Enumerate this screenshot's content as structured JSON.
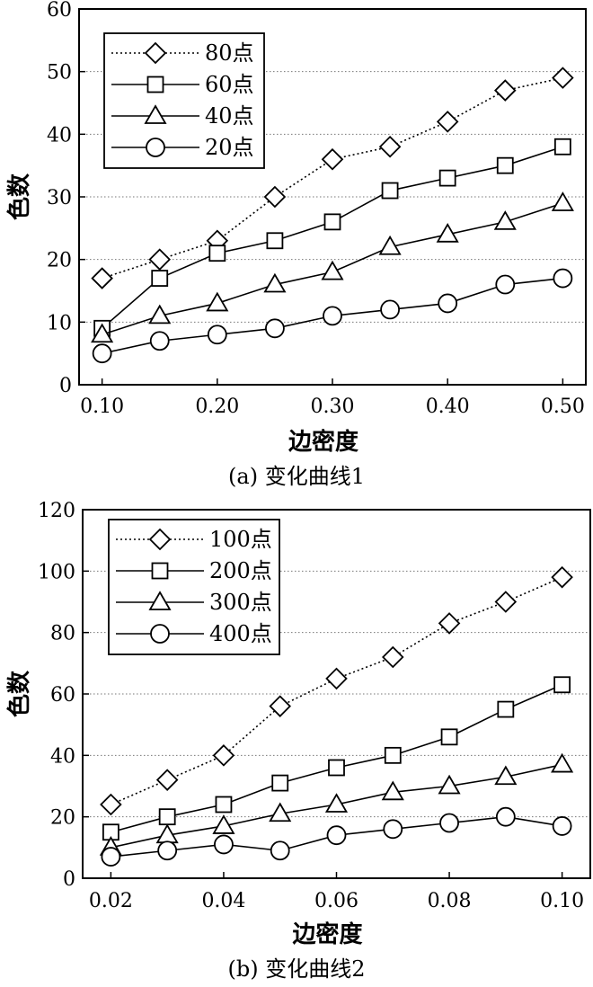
{
  "chart_data": [
    {
      "type": "line",
      "caption": "(a) 变化曲线1",
      "xlabel": "边密度",
      "ylabel": "色数",
      "x": [
        0.1,
        0.15,
        0.2,
        0.25,
        0.3,
        0.35,
        0.4,
        0.45,
        0.5
      ],
      "xticks": [
        0.1,
        0.2,
        0.3,
        0.4,
        0.5
      ],
      "xtick_labels": [
        "0.10",
        "0.20",
        "0.30",
        "0.40",
        "0.50"
      ],
      "xlim": [
        0.08,
        0.52
      ],
      "yticks": [
        0,
        10,
        20,
        30,
        40,
        50,
        60
      ],
      "ylim": [
        0,
        60
      ],
      "grid": "horizontal dotted",
      "legend_position": "top-left",
      "series": [
        {
          "name": "80点",
          "marker": "diamond",
          "line": "dotted",
          "values": [
            17,
            20,
            23,
            30,
            36,
            38,
            42,
            47,
            49
          ]
        },
        {
          "name": "60点",
          "marker": "square",
          "line": "solid",
          "values": [
            9,
            17,
            21,
            23,
            26,
            31,
            33,
            35,
            38
          ]
        },
        {
          "name": "40点",
          "marker": "triangle",
          "line": "solid",
          "values": [
            8,
            11,
            13,
            16,
            18,
            22,
            24,
            26,
            29
          ]
        },
        {
          "name": "20点",
          "marker": "circle",
          "line": "solid",
          "values": [
            5,
            7,
            8,
            9,
            11,
            12,
            13,
            16,
            17
          ]
        }
      ]
    },
    {
      "type": "line",
      "caption": "(b) 变化曲线2",
      "xlabel": "边密度",
      "ylabel": "色数",
      "x": [
        0.02,
        0.03,
        0.04,
        0.05,
        0.06,
        0.07,
        0.08,
        0.09,
        0.1
      ],
      "xticks": [
        0.02,
        0.04,
        0.06,
        0.08,
        0.1
      ],
      "xtick_labels": [
        "0.02",
        "0.04",
        "0.06",
        "0.08",
        "0.10"
      ],
      "xlim": [
        0.015,
        0.105
      ],
      "yticks": [
        0,
        20,
        40,
        60,
        80,
        100,
        120
      ],
      "ylim": [
        0,
        120
      ],
      "grid": "horizontal dotted",
      "legend_position": "top-left",
      "series": [
        {
          "name": "100点",
          "marker": "diamond",
          "line": "dotted",
          "values": [
            24,
            32,
            40,
            56,
            65,
            72,
            83,
            90,
            98
          ]
        },
        {
          "name": "200点",
          "marker": "square",
          "line": "solid",
          "values": [
            15,
            20,
            24,
            31,
            36,
            40,
            46,
            55,
            63
          ]
        },
        {
          "name": "300点",
          "marker": "triangle",
          "line": "solid",
          "values": [
            10,
            14,
            17,
            21,
            24,
            28,
            30,
            33,
            37
          ]
        },
        {
          "name": "400点",
          "marker": "circle",
          "line": "solid",
          "values": [
            7,
            9,
            11,
            9,
            14,
            16,
            18,
            20,
            17
          ]
        }
      ]
    }
  ]
}
